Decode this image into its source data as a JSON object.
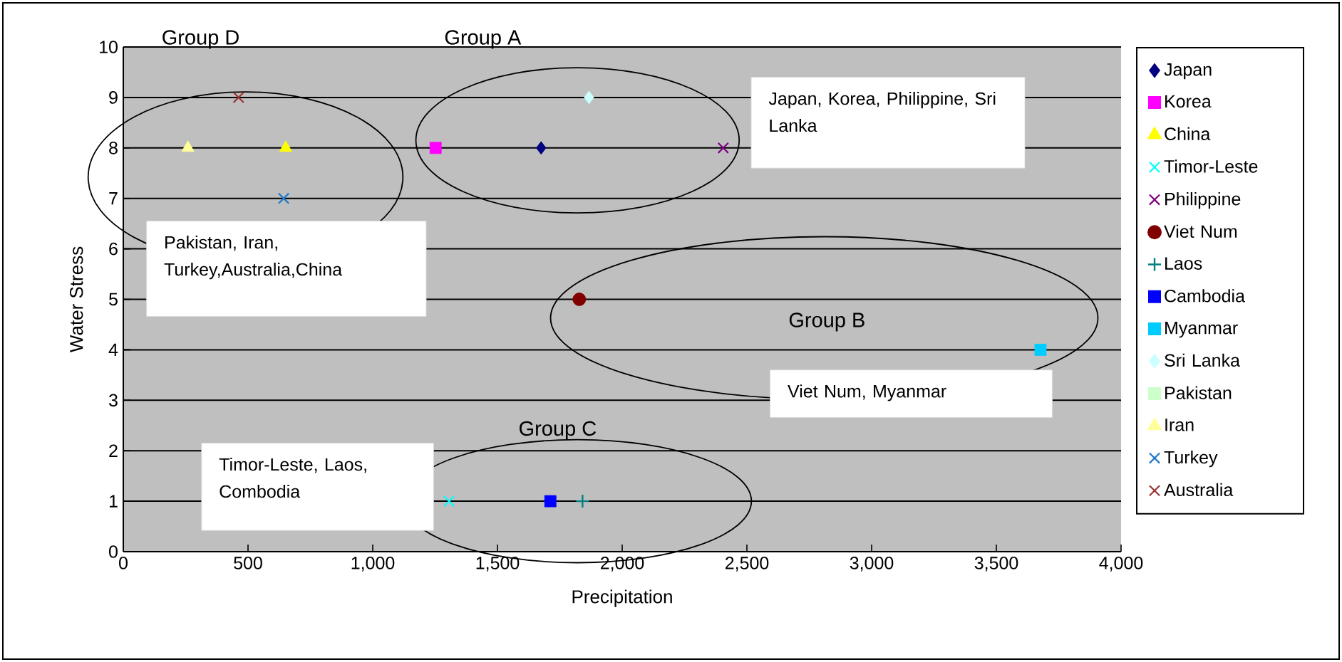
{
  "chart_data": {
    "type": "scatter",
    "xlabel": "Precipitation",
    "ylabel": "Water Stress",
    "xlim": [
      0,
      4000
    ],
    "ylim": [
      0,
      10
    ],
    "xticks": [
      0,
      {
        "value": 500,
        "label": "500"
      },
      {
        "value": 1000,
        "label": "1,000"
      },
      {
        "value": 1500,
        "label": "1,500"
      },
      {
        "value": 2000,
        "label": "2,000"
      },
      {
        "value": 2500,
        "label": "2,500"
      },
      {
        "value": 3000,
        "label": "3,000"
      },
      {
        "value": 3500,
        "label": "3,500"
      },
      {
        "value": 4000,
        "label": "4,000"
      }
    ],
    "yticks": [
      0,
      1,
      2,
      3,
      4,
      5,
      6,
      7,
      8,
      9,
      10
    ],
    "grid": "y",
    "legend": "right",
    "series": [
      {
        "name": "Japan",
        "color": "#000080",
        "marker": "diamond",
        "x": [
          1675
        ],
        "values": [
          8
        ]
      },
      {
        "name": "Korea",
        "color": "#ff00ff",
        "marker": "square",
        "x": [
          1252
        ],
        "values": [
          8
        ]
      },
      {
        "name": "China",
        "color": "#ffff00",
        "marker": "triangle",
        "x": [
          651
        ],
        "values": [
          8
        ]
      },
      {
        "name": "Timor-Leste",
        "color": "#00ffff",
        "marker": "cross",
        "x": [
          1306
        ],
        "values": [
          1
        ]
      },
      {
        "name": "Philippine",
        "color": "#800080",
        "marker": "cross",
        "x": [
          2405
        ],
        "values": [
          8
        ]
      },
      {
        "name": "Viet Num",
        "color": "#800000",
        "marker": "circle",
        "x": [
          1828
        ],
        "values": [
          5
        ]
      },
      {
        "name": "Laos",
        "color": "#008080",
        "marker": "plus",
        "x": [
          1841
        ],
        "values": [
          1
        ]
      },
      {
        "name": "Cambodia",
        "color": "#0000ff",
        "marker": "square",
        "x": [
          1712
        ],
        "values": [
          1
        ]
      },
      {
        "name": "Myanmar",
        "color": "#00ccff",
        "marker": "square",
        "x": [
          3677
        ],
        "values": [
          4
        ]
      },
      {
        "name": "Sri Lanka",
        "color": "#ccffff",
        "marker": "diamond",
        "x": [
          1867
        ],
        "values": [
          9
        ]
      },
      {
        "name": "Pakistan",
        "color": "#ccffcc",
        "marker": "square",
        "x": [
          null
        ],
        "values": [
          null
        ]
      },
      {
        "name": "Iran",
        "color": "#ffff99",
        "marker": "triangle",
        "x": [
          259
        ],
        "values": [
          8
        ]
      },
      {
        "name": "Turkey",
        "color": "#1f78c8",
        "marker": "cross",
        "x": [
          643
        ],
        "values": [
          7
        ]
      },
      {
        "name": "Australia",
        "color": "#993333",
        "marker": "cross",
        "x": [
          462
        ],
        "values": [
          9
        ]
      }
    ],
    "annotations": [
      "Group D",
      "Group A",
      "Group B",
      "Group C",
      "Japan, Korea, Philippine, Sri Lanka",
      "Pakistan, Iran, Turkey,Australia,China",
      "Viet Num, Myanmar",
      "Timor-Leste, Laos, Combodia"
    ]
  }
}
